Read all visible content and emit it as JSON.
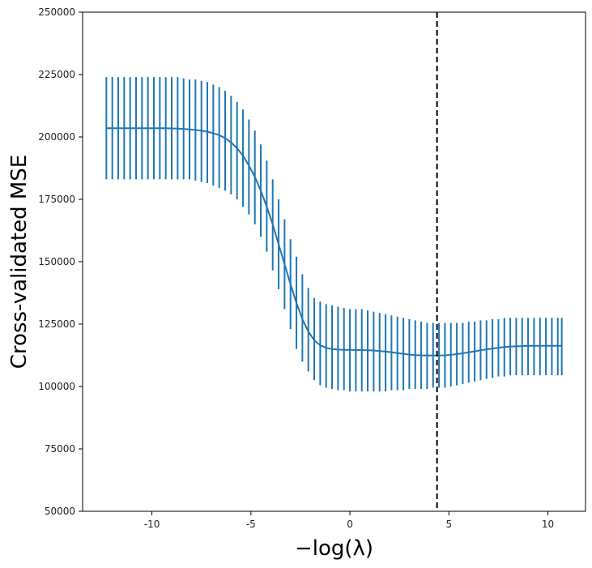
{
  "chart_data": {
    "type": "line",
    "title": "",
    "xlabel": "−log(λ)",
    "ylabel": "Cross-validated MSE",
    "xlim": [
      -13.5,
      11.9
    ],
    "ylim": [
      50000,
      250000
    ],
    "xticks": [
      -10,
      -5,
      0,
      5,
      10
    ],
    "xtick_labels": [
      "-10",
      "-5",
      "0",
      "5",
      "10"
    ],
    "yticks": [
      50000,
      75000,
      100000,
      125000,
      150000,
      175000,
      200000,
      225000,
      250000
    ],
    "ytick_labels": [
      "50000",
      "75000",
      "100000",
      "125000",
      "150000",
      "175000",
      "200000",
      "225000",
      "250000"
    ],
    "grid": false,
    "vline_x": 4.4,
    "vline_style": "dashed",
    "series": [
      {
        "x": [
          -12.3,
          -12.0,
          -11.7,
          -11.4,
          -11.1,
          -10.8,
          -10.5,
          -10.2,
          -9.9,
          -9.6,
          -9.3,
          -9.0,
          -8.7,
          -8.4,
          -8.1,
          -7.8,
          -7.5,
          -7.2,
          -6.9,
          -6.6,
          -6.3,
          -6.0,
          -5.7,
          -5.4,
          -5.1,
          -4.8,
          -4.5,
          -4.2,
          -3.9,
          -3.6,
          -3.3,
          -3.0,
          -2.7,
          -2.4,
          -2.1,
          -1.8,
          -1.5,
          -1.2,
          -0.9,
          -0.6,
          -0.3,
          0.0,
          0.3,
          0.6,
          0.9,
          1.2,
          1.5,
          1.8,
          2.1,
          2.4,
          2.7,
          3.0,
          3.3,
          3.6,
          3.9,
          4.2,
          4.5,
          4.8,
          5.1,
          5.4,
          5.7,
          6.0,
          6.3,
          6.6,
          6.9,
          7.2,
          7.5,
          7.8,
          8.1,
          8.4,
          8.7,
          9.0,
          9.3,
          9.6,
          9.9,
          10.2,
          10.5,
          10.7
        ],
        "values": [
          203500,
          203500,
          203500,
          203500,
          203500,
          203500,
          203500,
          203500,
          203500,
          203500,
          203500,
          203400,
          203300,
          203200,
          203000,
          202800,
          202500,
          202100,
          201500,
          200700,
          199500,
          197800,
          195500,
          192500,
          188500,
          184000,
          178500,
          172000,
          165000,
          157000,
          149000,
          141000,
          133500,
          127000,
          122000,
          118500,
          116500,
          115500,
          115000,
          114800,
          114700,
          114700,
          114600,
          114600,
          114500,
          114400,
          114200,
          114000,
          113700,
          113400,
          113100,
          112800,
          112600,
          112500,
          112400,
          112400,
          112400,
          112500,
          112700,
          113000,
          113300,
          113700,
          114100,
          114500,
          114900,
          115200,
          115500,
          115800,
          116000,
          116100,
          116200,
          116300,
          116300,
          116300,
          116300,
          116300,
          116300,
          116300
        ],
        "err_lower": [
          183000,
          183000,
          183000,
          183000,
          183000,
          183000,
          183000,
          183000,
          183000,
          183000,
          183000,
          183000,
          183000,
          183000,
          183000,
          182500,
          182000,
          181500,
          180500,
          179500,
          178500,
          177000,
          175000,
          172000,
          169000,
          165000,
          160000,
          154000,
          146500,
          139000,
          131000,
          123000,
          115000,
          110000,
          106000,
          102500,
          100500,
          99500,
          99000,
          98500,
          98500,
          98000,
          98000,
          98000,
          98000,
          98000,
          98000,
          98000,
          98500,
          98500,
          98500,
          99000,
          99000,
          99000,
          99000,
          99500,
          99500,
          99500,
          100000,
          100500,
          101000,
          101500,
          102000,
          102500,
          103000,
          103500,
          104000,
          104000,
          104500,
          104500,
          104500,
          104500,
          104500,
          104500,
          104500,
          104500,
          104500,
          104500
        ],
        "err_upper": [
          224000,
          224000,
          224000,
          224000,
          224000,
          224000,
          224000,
          224000,
          224000,
          224000,
          224000,
          224000,
          224000,
          223500,
          223000,
          223000,
          222500,
          222000,
          221000,
          220000,
          218500,
          216500,
          214000,
          211000,
          207000,
          202500,
          197000,
          190500,
          183000,
          175000,
          167000,
          159000,
          152000,
          145000,
          139500,
          135500,
          134000,
          133000,
          132500,
          132000,
          131500,
          131000,
          131000,
          131000,
          130500,
          130000,
          129500,
          129000,
          128500,
          128000,
          127500,
          127000,
          126500,
          126000,
          125500,
          125500,
          125500,
          125500,
          125500,
          125500,
          125500,
          126000,
          126000,
          126500,
          126500,
          127000,
          127000,
          127500,
          127500,
          127500,
          127500,
          127500,
          127500,
          127500,
          127500,
          127500,
          127500,
          127500
        ]
      }
    ],
    "colors": {
      "series": "#1f77b4",
      "vline": "#000000",
      "axes": "#000000"
    }
  }
}
